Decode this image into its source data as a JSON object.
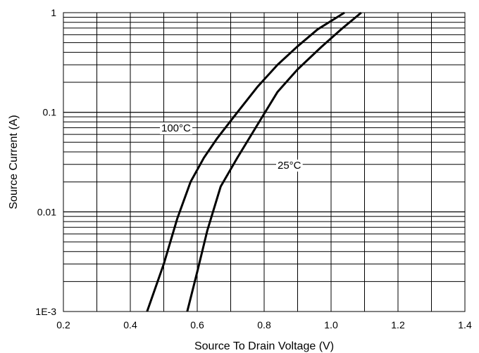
{
  "chart_data": {
    "type": "line",
    "xlabel": "Source To Drain Voltage (V)",
    "ylabel": "Source Current (A)",
    "xlim": [
      0.2,
      1.4
    ],
    "ylim": [
      0.001,
      1
    ],
    "y_scale": "log",
    "grid": true,
    "x_ticks": [
      "0.2",
      "0.4",
      "0.6",
      "0.8",
      "1.0",
      "1.2",
      "1.4"
    ],
    "y_ticks": [
      "1E-3",
      "0.01",
      "0.1",
      "1"
    ],
    "series": [
      {
        "name": "100°C",
        "x": [
          0.45,
          0.5,
          0.54,
          0.58,
          0.62,
          0.66,
          0.72,
          0.78,
          0.84,
          0.9,
          0.96,
          1.04
        ],
        "y": [
          0.001,
          0.003,
          0.0085,
          0.02,
          0.035,
          0.055,
          0.1,
          0.18,
          0.3,
          0.46,
          0.68,
          1.0
        ]
      },
      {
        "name": "25°C",
        "x": [
          0.57,
          0.6,
          0.63,
          0.67,
          0.72,
          0.78,
          0.84,
          0.9,
          0.97,
          1.03,
          1.09
        ],
        "y": [
          0.001,
          0.0025,
          0.0065,
          0.018,
          0.035,
          0.075,
          0.16,
          0.27,
          0.45,
          0.68,
          1.0
        ]
      }
    ]
  }
}
